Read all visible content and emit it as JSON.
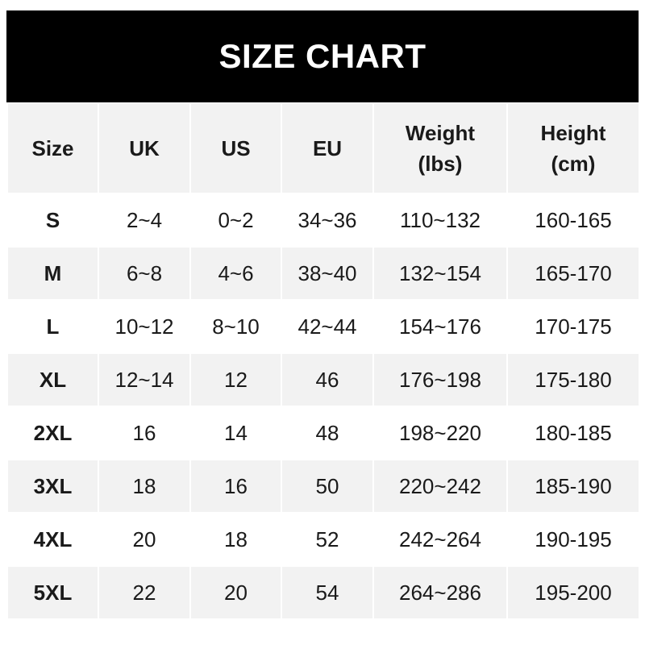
{
  "title": "SIZE CHART",
  "headers": [
    {
      "line1": "Size",
      "line2": ""
    },
    {
      "line1": "UK",
      "line2": ""
    },
    {
      "line1": "US",
      "line2": ""
    },
    {
      "line1": "EU",
      "line2": ""
    },
    {
      "line1": "Weight",
      "line2": "(lbs)"
    },
    {
      "line1": "Height",
      "line2": "(cm)"
    }
  ],
  "rows": [
    [
      "S",
      "2~4",
      "0~2",
      "34~36",
      "110~132",
      "160-165"
    ],
    [
      "M",
      "6~8",
      "4~6",
      "38~40",
      "132~154",
      "165-170"
    ],
    [
      "L",
      "10~12",
      "8~10",
      "42~44",
      "154~176",
      "170-175"
    ],
    [
      "XL",
      "12~14",
      "12",
      "46",
      "176~198",
      "175-180"
    ],
    [
      "2XL",
      "16",
      "14",
      "48",
      "198~220",
      "180-185"
    ],
    [
      "3XL",
      "18",
      "16",
      "50",
      "220~242",
      "185-190"
    ],
    [
      "4XL",
      "20",
      "18",
      "52",
      "242~264",
      "190-195"
    ],
    [
      "5XL",
      "22",
      "20",
      "54",
      "264~286",
      "195-200"
    ]
  ],
  "colors": {
    "title_bg": "#000000",
    "title_text": "#ffffff",
    "alt_row": "#f2f2f2",
    "text": "#1a1a1a"
  }
}
